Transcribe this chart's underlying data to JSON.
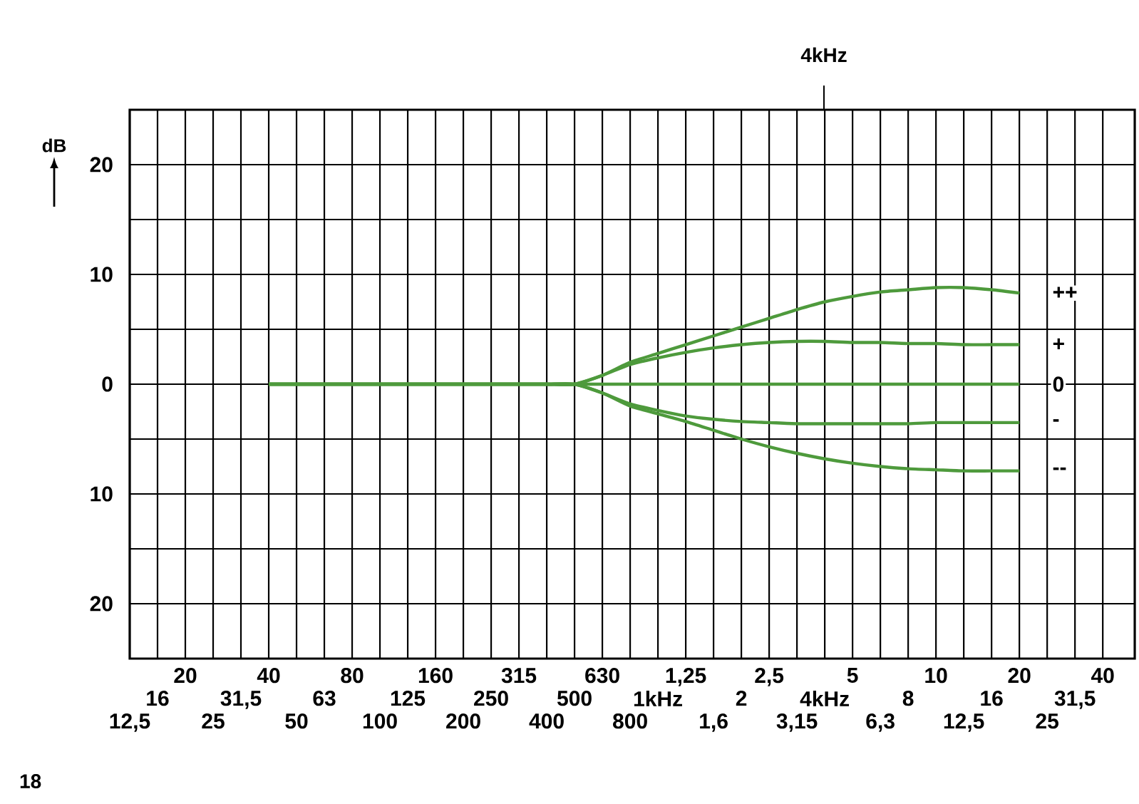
{
  "chart_data": {
    "type": "line",
    "ylabel": "dB",
    "legend": false,
    "grid": true,
    "marker": "none",
    "line_style": "solid",
    "ylim": [
      -25,
      25
    ],
    "categories": [
      "12,5",
      "16",
      "20",
      "25",
      "31,5",
      "40",
      "50",
      "63",
      "80",
      "100",
      "125",
      "160",
      "200",
      "250",
      "315",
      "400",
      "500",
      "630",
      "800",
      "1kHz",
      "1,25",
      "1,6",
      "2",
      "2,5",
      "3,15",
      "4kHz",
      "5",
      "6,3",
      "8",
      "10",
      "12,5",
      "16",
      "20",
      "25",
      "31,5",
      "40"
    ],
    "yticks": [
      {
        "value": -25,
        "label": null
      },
      {
        "value": -20,
        "label": "20"
      },
      {
        "value": -15,
        "label": null
      },
      {
        "value": -10,
        "label": "10"
      },
      {
        "value": -5,
        "label": null
      },
      {
        "value": 0,
        "label": "0"
      },
      {
        "value": 5,
        "label": null
      },
      {
        "value": 10,
        "label": "10"
      },
      {
        "value": 15,
        "label": null
      },
      {
        "value": 20,
        "label": "20"
      },
      {
        "value": 25,
        "label": null
      }
    ],
    "annotations": [
      "4kHz",
      "18"
    ],
    "series": [
      {
        "name": "++",
        "color": "#4e9a3c",
        "values": [
          null,
          null,
          null,
          null,
          null,
          0,
          0,
          0,
          0,
          0,
          0,
          0,
          0,
          0,
          0,
          0,
          0,
          0.8,
          2,
          2.8,
          3.6,
          4.4,
          5.2,
          6,
          6.8,
          7.5,
          8,
          8.4,
          8.6,
          8.8,
          8.8,
          8.6,
          8.3,
          null,
          null,
          null
        ]
      },
      {
        "name": "+",
        "color": "#4e9a3c",
        "values": [
          null,
          null,
          null,
          null,
          null,
          0,
          0,
          0,
          0,
          0,
          0,
          0,
          0,
          0,
          0,
          0,
          0,
          0.8,
          1.8,
          2.4,
          2.9,
          3.3,
          3.6,
          3.8,
          3.9,
          3.9,
          3.8,
          3.8,
          3.7,
          3.7,
          3.6,
          3.6,
          3.6,
          null,
          null,
          null
        ]
      },
      {
        "name": "0",
        "color": "#4e9a3c",
        "values": [
          null,
          null,
          null,
          null,
          null,
          0,
          0,
          0,
          0,
          0,
          0,
          0,
          0,
          0,
          0,
          0,
          0,
          0,
          0,
          0,
          0,
          0,
          0,
          0,
          0,
          0,
          0,
          0,
          0,
          0,
          0,
          0,
          0,
          null,
          null,
          null
        ]
      },
      {
        "name": "-",
        "color": "#4e9a3c",
        "values": [
          null,
          null,
          null,
          null,
          null,
          0,
          0,
          0,
          0,
          0,
          0,
          0,
          0,
          0,
          0,
          0,
          0,
          -0.8,
          -1.8,
          -2.4,
          -2.9,
          -3.2,
          -3.4,
          -3.5,
          -3.6,
          -3.6,
          -3.6,
          -3.6,
          -3.6,
          -3.5,
          -3.5,
          -3.5,
          -3.5,
          null,
          null,
          null
        ]
      },
      {
        "name": "--",
        "color": "#4e9a3c",
        "values": [
          null,
          null,
          null,
          null,
          null,
          0,
          0,
          0,
          0,
          0,
          0,
          0,
          0,
          0,
          0,
          0,
          0,
          -0.8,
          -2,
          -2.7,
          -3.4,
          -4.2,
          -5,
          -5.7,
          -6.3,
          -6.8,
          -7.2,
          -7.5,
          -7.7,
          -7.8,
          -7.9,
          -7.9,
          -7.9,
          null,
          null,
          null
        ]
      }
    ]
  }
}
